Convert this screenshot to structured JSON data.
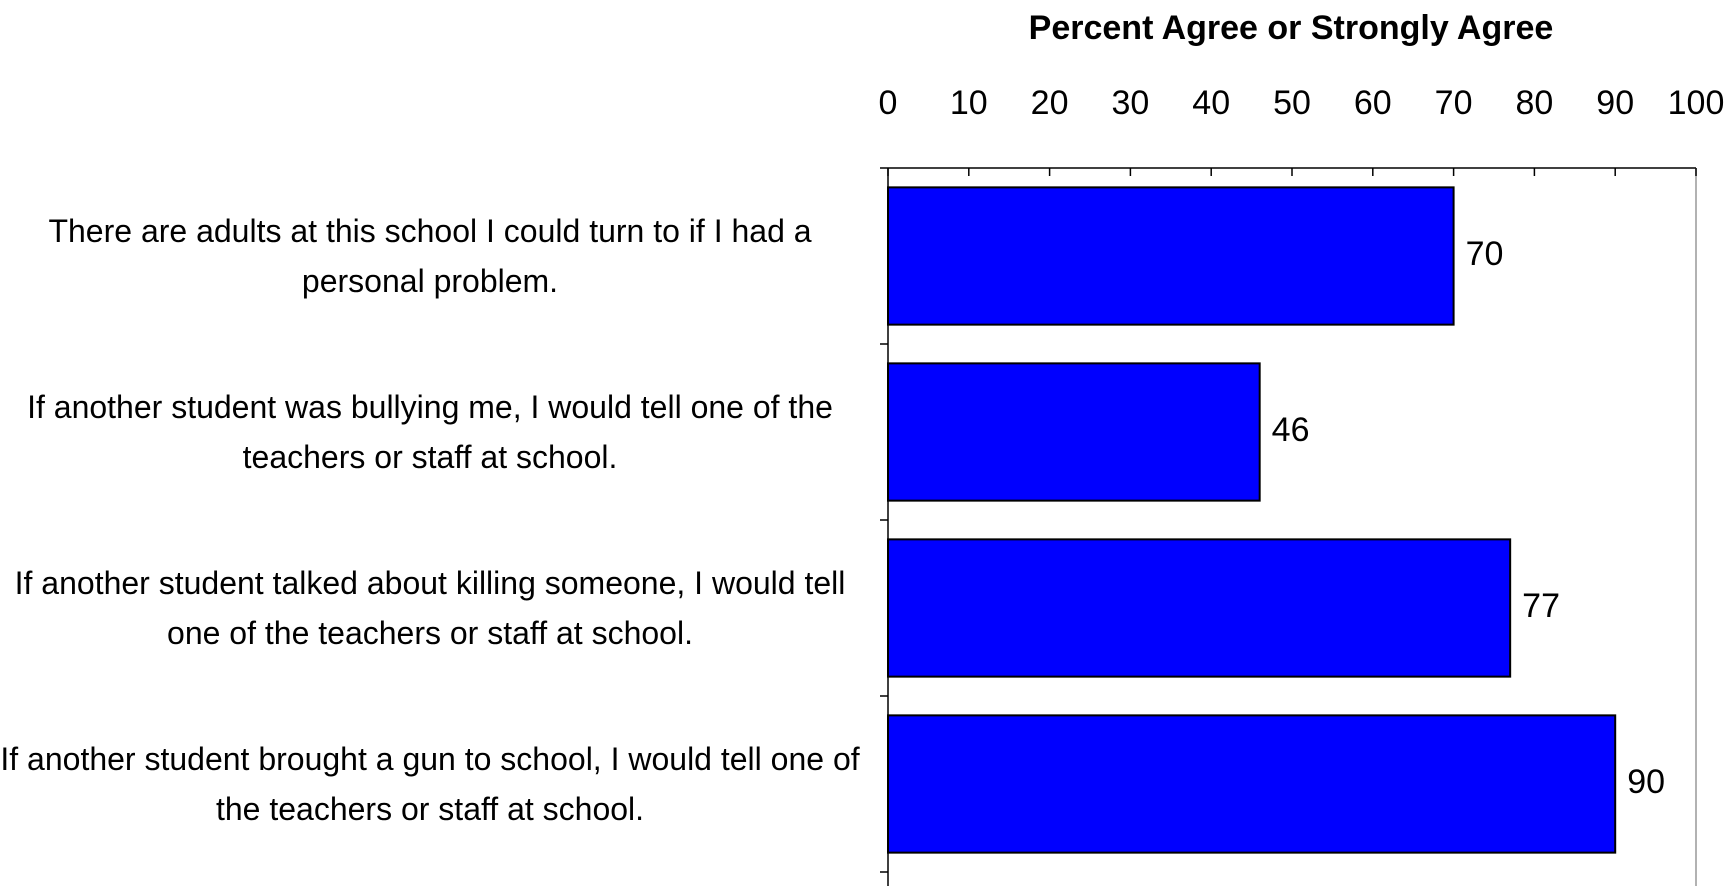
{
  "chart_data": {
    "type": "barh",
    "title": "Percent Agree or Strongly Agree",
    "categories": [
      "There are adults at this school I could turn to if I had a personal problem.",
      "If another student was bullying me, I would tell one of the teachers or staff at school.",
      "If another student talked about killing someone, I would tell one of the teachers or staff at school.",
      "If another student brought a gun to school, I would tell one of the teachers or staff at school."
    ],
    "values": [
      70,
      46,
      77,
      90
    ],
    "color": "#0000ff",
    "xlim": [
      0,
      100
    ],
    "xticks": [
      0,
      10,
      20,
      30,
      40,
      50,
      60,
      70,
      80,
      90,
      100
    ]
  }
}
